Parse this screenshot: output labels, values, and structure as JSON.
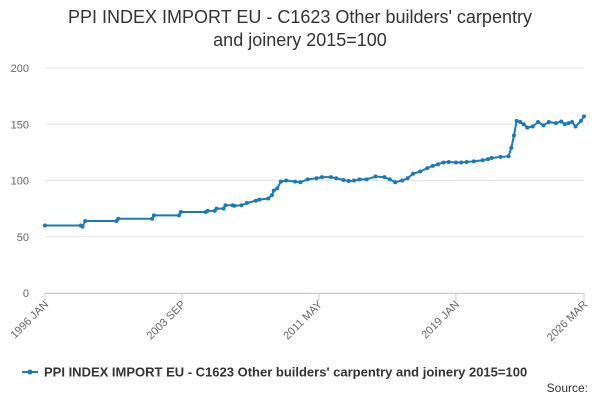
{
  "chart_data": {
    "type": "line",
    "title_line1": "PPI INDEX IMPORT EU - C1623 Other builders' carpentry",
    "title_line2": "and joinery 2015=100",
    "xlabel": "",
    "ylabel": "",
    "x_range": [
      1996.0,
      2026.17
    ],
    "ylim": [
      0,
      200
    ],
    "y_ticks": [
      "0",
      "50",
      "100",
      "150",
      "200"
    ],
    "y_tick_values": [
      0,
      50,
      100,
      150,
      200
    ],
    "x_ticks": [
      "1996 JAN",
      "2003 SEP",
      "2011 MAY",
      "2019 JAN",
      "2026 MAR"
    ],
    "x_tick_values": [
      1996.0,
      2003.67,
      2011.33,
      2019.0,
      2026.17
    ],
    "grid": true,
    "legend_position": "bottom",
    "color": "#1a7ab8",
    "series": [
      {
        "name": "PPI INDEX IMPORT EU - C1623 Other builders' carpentry and joinery 2015=100",
        "x": [
          1996.0,
          1998.0,
          1998.1,
          1998.25,
          2000.0,
          2000.1,
          2002.0,
          2002.1,
          2003.5,
          2003.6,
          2005.0,
          2005.1,
          2005.5,
          2005.6,
          2006.0,
          2006.1,
          2006.5,
          2006.6,
          2007.0,
          2007.3,
          2007.8,
          2008.0,
          2008.5,
          2008.7,
          2008.8,
          2009.0,
          2009.2,
          2009.5,
          2010.0,
          2010.3,
          2010.7,
          2011.2,
          2011.5,
          2012.0,
          2012.3,
          2012.7,
          2013.0,
          2013.3,
          2013.6,
          2014.0,
          2014.5,
          2015.0,
          2015.3,
          2015.6,
          2016.0,
          2016.3,
          2016.6,
          2017.0,
          2017.4,
          2017.7,
          2018.0,
          2018.3,
          2018.6,
          2019.0,
          2019.3,
          2019.6,
          2020.0,
          2020.5,
          2020.8,
          2021.0,
          2021.5,
          2021.95,
          2022.1,
          2022.25,
          2022.4,
          2022.6,
          2022.8,
          2023.0,
          2023.3,
          2023.6,
          2023.9,
          2024.2,
          2024.6,
          2024.9,
          2025.1,
          2025.3,
          2025.5,
          2025.7,
          2026.0,
          2026.17
        ],
        "values": [
          60,
          60,
          59,
          64,
          64,
          66,
          66,
          69,
          69,
          72,
          72,
          73,
          73,
          75,
          75,
          78,
          78,
          77.5,
          78,
          80,
          82,
          83,
          84,
          87,
          91,
          93,
          99,
          100,
          99,
          98.5,
          101,
          102,
          103,
          103,
          102,
          100.5,
          99.5,
          100,
          101,
          101,
          103.5,
          103,
          101,
          98.5,
          100,
          102,
          106,
          108,
          111,
          113,
          114.5,
          116,
          116.5,
          116,
          116,
          116.5,
          117,
          118,
          119,
          120,
          121,
          121.5,
          129,
          140,
          153,
          152,
          150,
          147,
          148,
          152,
          149,
          152,
          151,
          152.5,
          150,
          151,
          152,
          148,
          153,
          157
        ]
      }
    ]
  },
  "legend": {
    "label": "PPI INDEX IMPORT EU - C1623 Other builders' carpentry and joinery 2015=100"
  },
  "source": {
    "label": "Source:"
  }
}
